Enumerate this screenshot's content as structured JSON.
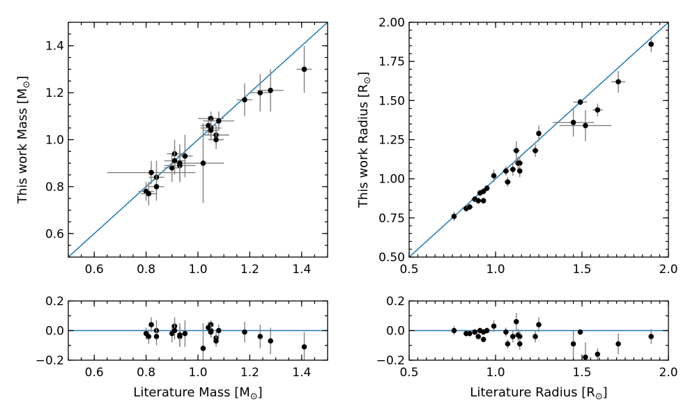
{
  "chart_data": [
    {
      "id": "mass-main",
      "type": "scatter",
      "ylabel_text": "This work Mass [M",
      "ylabel_sub": "⊙",
      "ylabel_close": "]",
      "xlim": [
        0.5,
        1.5
      ],
      "ylim": [
        0.5,
        1.5
      ],
      "xticks": [
        0.6,
        0.8,
        1.0,
        1.2,
        1.4
      ],
      "xtick_labels": [
        "0.6",
        "0.8",
        "1.0",
        "1.2",
        "1.4"
      ],
      "yticks": [
        0.6,
        0.8,
        1.0,
        1.2,
        1.4
      ],
      "ytick_labels": [
        "0.6",
        "0.8",
        "1.0",
        "1.2",
        "1.4"
      ],
      "minor_step": 0.05,
      "identity_line": true,
      "points": [
        {
          "x": 0.8,
          "y": 0.78,
          "xerr": 0.03,
          "yerr": 0.04
        },
        {
          "x": 0.81,
          "y": 0.77,
          "xerr": 0.03,
          "yerr": 0.05
        },
        {
          "x": 0.82,
          "y": 0.86,
          "xerr": 0.17,
          "yerr": 0.05
        },
        {
          "x": 0.84,
          "y": 0.84,
          "xerr": 0.03,
          "yerr": 0.07
        },
        {
          "x": 0.84,
          "y": 0.8,
          "xerr": 0.03,
          "yerr": 0.06
        },
        {
          "x": 0.9,
          "y": 0.88,
          "xerr": 0.03,
          "yerr": 0.06
        },
        {
          "x": 0.91,
          "y": 0.94,
          "xerr": 0.03,
          "yerr": 0.06
        },
        {
          "x": 0.91,
          "y": 0.91,
          "xerr": 0.04,
          "yerr": 0.06
        },
        {
          "x": 0.93,
          "y": 0.89,
          "xerr": 0.06,
          "yerr": 0.07
        },
        {
          "x": 0.93,
          "y": 0.9,
          "xerr": 0.03,
          "yerr": 0.08
        },
        {
          "x": 0.95,
          "y": 0.93,
          "xerr": 0.03,
          "yerr": 0.09
        },
        {
          "x": 1.02,
          "y": 0.9,
          "xerr": 0.08,
          "yerr": 0.17
        },
        {
          "x": 1.04,
          "y": 1.06,
          "xerr": 0.03,
          "yerr": 0.04
        },
        {
          "x": 1.05,
          "y": 1.09,
          "xerr": 0.05,
          "yerr": 0.03
        },
        {
          "x": 1.05,
          "y": 1.05,
          "xerr": 0.04,
          "yerr": 0.04
        },
        {
          "x": 1.05,
          "y": 1.04,
          "xerr": 0.03,
          "yerr": 0.04
        },
        {
          "x": 1.07,
          "y": 1.02,
          "xerr": 0.05,
          "yerr": 0.04
        },
        {
          "x": 1.07,
          "y": 1.0,
          "xerr": 0.03,
          "yerr": 0.04
        },
        {
          "x": 1.08,
          "y": 1.08,
          "xerr": 0.06,
          "yerr": 0.04
        },
        {
          "x": 1.18,
          "y": 1.17,
          "xerr": 0.03,
          "yerr": 0.07
        },
        {
          "x": 1.24,
          "y": 1.2,
          "xerr": 0.04,
          "yerr": 0.08
        },
        {
          "x": 1.28,
          "y": 1.21,
          "xerr": 0.05,
          "yerr": 0.09
        },
        {
          "x": 1.41,
          "y": 1.3,
          "xerr": 0.03,
          "yerr": 0.1
        }
      ]
    },
    {
      "id": "radius-main",
      "type": "scatter",
      "ylabel_text": "This work Radius [R",
      "ylabel_sub": "⊙",
      "ylabel_close": "]",
      "xlim": [
        0.5,
        2.0
      ],
      "ylim": [
        0.5,
        2.0
      ],
      "xticks": [
        0.5,
        1.0,
        1.5,
        2.0
      ],
      "xtick_labels": [
        "0.5",
        "1.0",
        "1.5",
        "2.0"
      ],
      "yticks": [
        0.5,
        0.75,
        1.0,
        1.25,
        1.5,
        1.75,
        2.0
      ],
      "ytick_labels": [
        "0.50",
        "0.75",
        "1.00",
        "1.25",
        "1.50",
        "1.75",
        "2.00"
      ],
      "minor_step": 0.05,
      "identity_line": true,
      "points": [
        {
          "x": 0.76,
          "y": 0.76,
          "xerr": 0.01,
          "yerr": 0.03
        },
        {
          "x": 0.83,
          "y": 0.81,
          "xerr": 0.01,
          "yerr": 0.02
        },
        {
          "x": 0.85,
          "y": 0.82,
          "xerr": 0.02,
          "yerr": 0.02
        },
        {
          "x": 0.88,
          "y": 0.87,
          "xerr": 0.02,
          "yerr": 0.02
        },
        {
          "x": 0.9,
          "y": 0.86,
          "xerr": 0.02,
          "yerr": 0.02
        },
        {
          "x": 0.91,
          "y": 0.91,
          "xerr": 0.01,
          "yerr": 0.02
        },
        {
          "x": 0.93,
          "y": 0.92,
          "xerr": 0.01,
          "yerr": 0.02
        },
        {
          "x": 0.93,
          "y": 0.86,
          "xerr": 0.01,
          "yerr": 0.02
        },
        {
          "x": 0.95,
          "y": 0.94,
          "xerr": 0.01,
          "yerr": 0.02
        },
        {
          "x": 0.99,
          "y": 1.02,
          "xerr": 0.01,
          "yerr": 0.04
        },
        {
          "x": 1.06,
          "y": 1.05,
          "xerr": 0.02,
          "yerr": 0.03
        },
        {
          "x": 1.07,
          "y": 0.98,
          "xerr": 0.02,
          "yerr": 0.03
        },
        {
          "x": 1.1,
          "y": 1.06,
          "xerr": 0.02,
          "yerr": 0.04
        },
        {
          "x": 1.12,
          "y": 1.18,
          "xerr": 0.02,
          "yerr": 0.06
        },
        {
          "x": 1.13,
          "y": 1.1,
          "xerr": 0.02,
          "yerr": 0.04
        },
        {
          "x": 1.14,
          "y": 1.1,
          "xerr": 0.02,
          "yerr": 0.04
        },
        {
          "x": 1.14,
          "y": 1.05,
          "xerr": 0.01,
          "yerr": 0.04
        },
        {
          "x": 1.23,
          "y": 1.18,
          "xerr": 0.02,
          "yerr": 0.04
        },
        {
          "x": 1.25,
          "y": 1.29,
          "xerr": 0.01,
          "yerr": 0.05
        },
        {
          "x": 1.45,
          "y": 1.36,
          "xerr": 0.12,
          "yerr": 0.09
        },
        {
          "x": 1.49,
          "y": 1.49,
          "xerr": 0.04,
          "yerr": 0.02
        },
        {
          "x": 1.52,
          "y": 1.34,
          "xerr": 0.15,
          "yerr": 0.1
        },
        {
          "x": 1.59,
          "y": 1.44,
          "xerr": 0.03,
          "yerr": 0.04
        },
        {
          "x": 1.71,
          "y": 1.62,
          "xerr": 0.04,
          "yerr": 0.07
        },
        {
          "x": 1.9,
          "y": 1.86,
          "xerr": 0.01,
          "yerr": 0.05
        }
      ]
    },
    {
      "id": "mass-resid",
      "type": "scatter",
      "xlabel_text": "Literature Mass [M",
      "xlabel_sub": "⊙",
      "xlabel_close": "]",
      "xlim": [
        0.5,
        1.5
      ],
      "ylim": [
        -0.2,
        0.2
      ],
      "xticks": [
        0.6,
        0.8,
        1.0,
        1.2,
        1.4
      ],
      "xtick_labels": [
        "0.6",
        "0.8",
        "1.0",
        "1.2",
        "1.4"
      ],
      "yticks": [
        -0.2,
        0.0,
        0.2
      ],
      "ytick_labels": [
        "−0.2",
        "0.0",
        "0.2"
      ],
      "minor_step": 0.05,
      "minor_step_y": 0.1,
      "zero_line": true,
      "points": [
        {
          "x": 0.8,
          "y": -0.02,
          "yerr": 0.04
        },
        {
          "x": 0.81,
          "y": -0.04,
          "yerr": 0.05
        },
        {
          "x": 0.82,
          "y": 0.04,
          "yerr": 0.05
        },
        {
          "x": 0.84,
          "y": 0.0,
          "yerr": 0.07
        },
        {
          "x": 0.84,
          "y": -0.04,
          "yerr": 0.06
        },
        {
          "x": 0.9,
          "y": -0.02,
          "yerr": 0.06
        },
        {
          "x": 0.91,
          "y": 0.03,
          "yerr": 0.06
        },
        {
          "x": 0.91,
          "y": 0.0,
          "yerr": 0.06
        },
        {
          "x": 0.93,
          "y": -0.04,
          "yerr": 0.07
        },
        {
          "x": 0.93,
          "y": -0.03,
          "yerr": 0.08
        },
        {
          "x": 0.95,
          "y": -0.02,
          "yerr": 0.09
        },
        {
          "x": 1.02,
          "y": -0.12,
          "yerr": 0.17
        },
        {
          "x": 1.04,
          "y": 0.02,
          "yerr": 0.04
        },
        {
          "x": 1.05,
          "y": 0.04,
          "yerr": 0.03
        },
        {
          "x": 1.05,
          "y": 0.0,
          "yerr": 0.04
        },
        {
          "x": 1.05,
          "y": -0.01,
          "yerr": 0.04
        },
        {
          "x": 1.07,
          "y": -0.05,
          "yerr": 0.04
        },
        {
          "x": 1.07,
          "y": -0.07,
          "yerr": 0.04
        },
        {
          "x": 1.08,
          "y": 0.0,
          "yerr": 0.04
        },
        {
          "x": 1.18,
          "y": -0.01,
          "yerr": 0.07
        },
        {
          "x": 1.24,
          "y": -0.04,
          "yerr": 0.08
        },
        {
          "x": 1.28,
          "y": -0.07,
          "yerr": 0.09
        },
        {
          "x": 1.41,
          "y": -0.11,
          "yerr": 0.1
        }
      ]
    },
    {
      "id": "radius-resid",
      "type": "scatter",
      "xlabel_text": "Literature Radius [R",
      "xlabel_sub": "⊙",
      "xlabel_close": "]",
      "xlim": [
        0.5,
        2.0
      ],
      "ylim": [
        -0.2,
        0.2
      ],
      "xticks": [
        0.5,
        1.0,
        1.5,
        2.0
      ],
      "xtick_labels": [
        "0.5",
        "1.0",
        "1.5",
        "2.0"
      ],
      "yticks": [
        -0.2,
        0.0,
        0.2
      ],
      "ytick_labels": [
        "−0.2",
        "0.0",
        "0.2"
      ],
      "minor_step": 0.05,
      "minor_step_y": 0.1,
      "zero_line": true,
      "points": [
        {
          "x": 0.76,
          "y": 0.0,
          "yerr": 0.03
        },
        {
          "x": 0.83,
          "y": -0.02,
          "yerr": 0.02
        },
        {
          "x": 0.85,
          "y": -0.02,
          "yerr": 0.02
        },
        {
          "x": 0.88,
          "y": -0.01,
          "yerr": 0.02
        },
        {
          "x": 0.9,
          "y": -0.04,
          "yerr": 0.02
        },
        {
          "x": 0.91,
          "y": 0.0,
          "yerr": 0.02
        },
        {
          "x": 0.93,
          "y": -0.01,
          "yerr": 0.02
        },
        {
          "x": 0.93,
          "y": -0.06,
          "yerr": 0.02
        },
        {
          "x": 0.95,
          "y": 0.0,
          "yerr": 0.02
        },
        {
          "x": 0.99,
          "y": 0.03,
          "yerr": 0.04
        },
        {
          "x": 1.06,
          "y": -0.01,
          "yerr": 0.03
        },
        {
          "x": 1.07,
          "y": -0.09,
          "yerr": 0.03
        },
        {
          "x": 1.1,
          "y": -0.04,
          "yerr": 0.04
        },
        {
          "x": 1.12,
          "y": 0.06,
          "yerr": 0.06
        },
        {
          "x": 1.13,
          "y": -0.03,
          "yerr": 0.04
        },
        {
          "x": 1.14,
          "y": -0.04,
          "yerr": 0.04
        },
        {
          "x": 1.14,
          "y": -0.09,
          "yerr": 0.04
        },
        {
          "x": 1.23,
          "y": -0.04,
          "yerr": 0.04
        },
        {
          "x": 1.25,
          "y": 0.04,
          "yerr": 0.05
        },
        {
          "x": 1.45,
          "y": -0.09,
          "yerr": 0.09
        },
        {
          "x": 1.49,
          "y": -0.01,
          "yerr": 0.02
        },
        {
          "x": 1.52,
          "y": -0.18,
          "yerr": 0.1
        },
        {
          "x": 1.59,
          "y": -0.16,
          "yerr": 0.04
        },
        {
          "x": 1.71,
          "y": -0.09,
          "yerr": 0.07
        },
        {
          "x": 1.9,
          "y": -0.04,
          "yerr": 0.05
        }
      ]
    }
  ],
  "style": {
    "marker_color": "#000000",
    "errorbar_color": "#808080",
    "line_color": "#1f77b4"
  }
}
